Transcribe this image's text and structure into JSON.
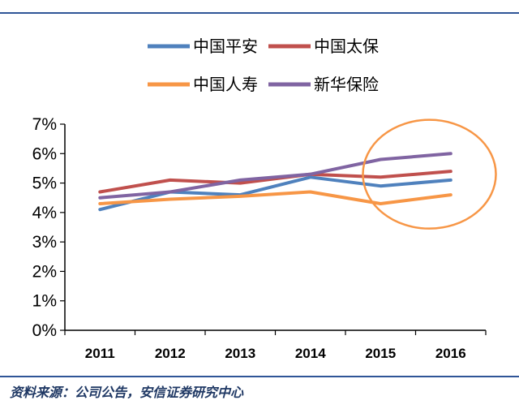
{
  "chart_data": {
    "type": "line",
    "title": "",
    "xlabel": "",
    "ylabel": "",
    "categories": [
      "2011",
      "2012",
      "2013",
      "2014",
      "2015",
      "2016"
    ],
    "ylim": [
      0,
      7
    ],
    "yticks": [
      0,
      1,
      2,
      3,
      4,
      5,
      6,
      7
    ],
    "ytick_labels": [
      "0%",
      "1%",
      "2%",
      "3%",
      "4%",
      "5%",
      "6%",
      "7%"
    ],
    "grid": false,
    "legend_position": "top",
    "series": [
      {
        "name": "中国平安",
        "color": "#4f81bd",
        "values": [
          4.1,
          4.7,
          4.6,
          5.2,
          4.9,
          5.1
        ]
      },
      {
        "name": "中国太保",
        "color": "#c0504d",
        "values": [
          4.7,
          5.1,
          5.0,
          5.3,
          5.2,
          5.4
        ]
      },
      {
        "name": "中国人寿",
        "color": "#f79646",
        "values": [
          4.3,
          4.45,
          4.55,
          4.7,
          4.3,
          4.6
        ]
      },
      {
        "name": "新华保险",
        "color": "#8064a2",
        "values": [
          4.5,
          4.7,
          5.1,
          5.3,
          5.8,
          6.0
        ]
      }
    ],
    "annotation": {
      "type": "ellipse",
      "color": "#f79646",
      "x_range": [
        "2015",
        "2016"
      ],
      "y_center": 5.3
    }
  },
  "source_note": "资料来源：公司公告，安信证券研究中心"
}
